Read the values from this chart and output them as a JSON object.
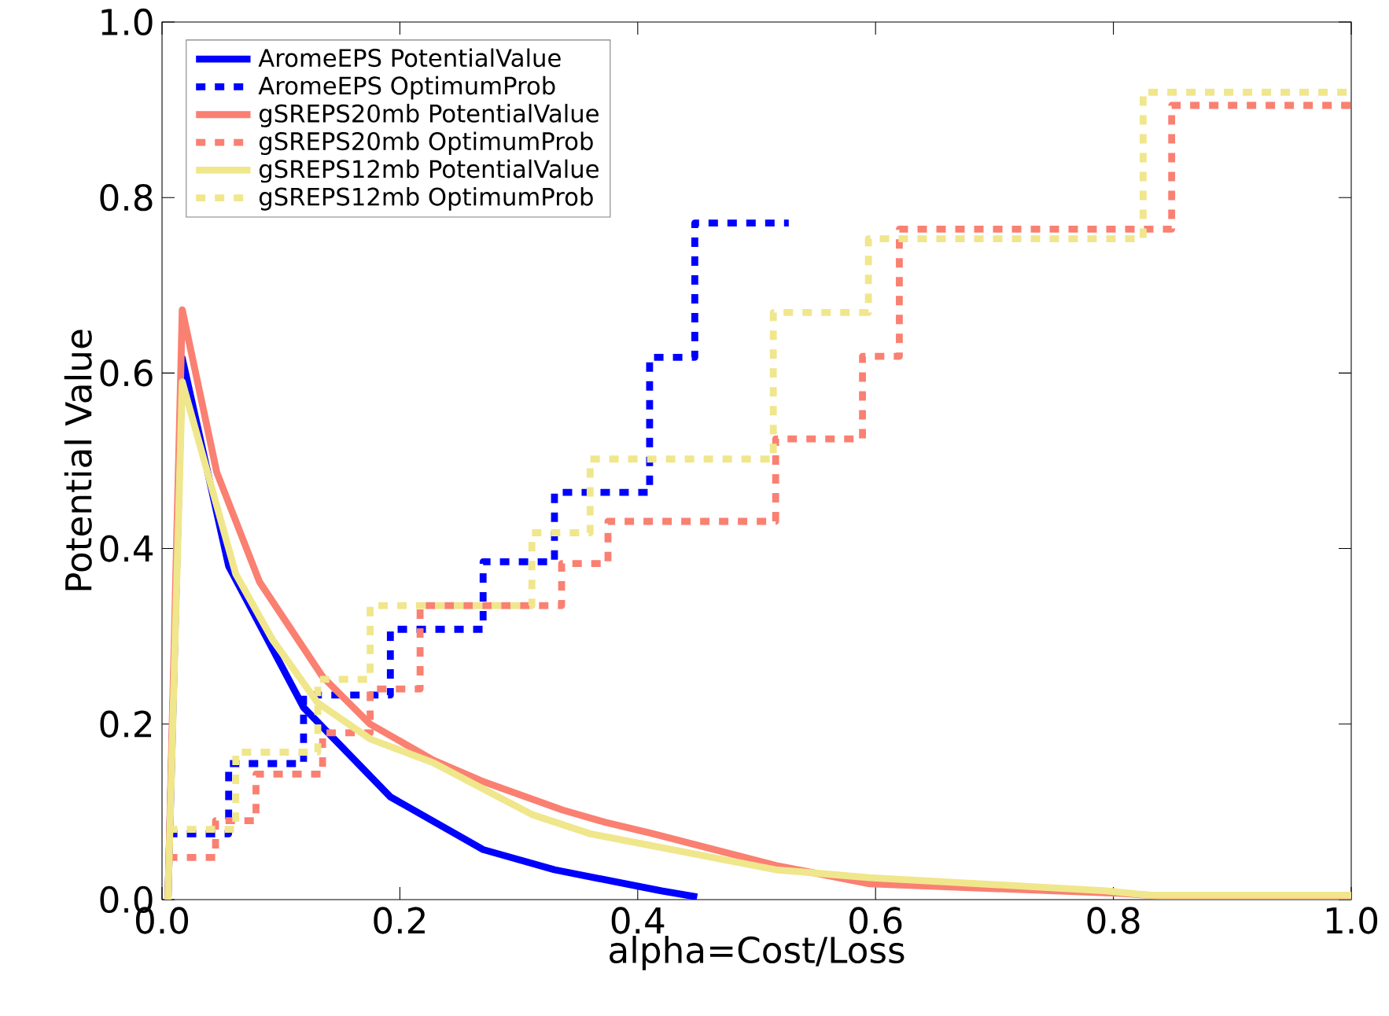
{
  "chart_data": {
    "type": "line",
    "xlabel": "alpha=Cost/Loss",
    "ylabel": "Potential Value",
    "xlim": [
      0,
      1
    ],
    "ylim": [
      0,
      1
    ],
    "xticks": [
      {
        "value": 0,
        "label": "0.0"
      },
      {
        "value": 0.2,
        "label": "0.2"
      },
      {
        "value": 0.4,
        "label": "0.4"
      },
      {
        "value": 0.6,
        "label": "0.6"
      },
      {
        "value": 0.8,
        "label": "0.8"
      },
      {
        "value": 1,
        "label": "1.0"
      }
    ],
    "yticks": [
      {
        "value": 0,
        "label": "0.0"
      },
      {
        "value": 0.2,
        "label": "0.2"
      },
      {
        "value": 0.4,
        "label": "0.4"
      },
      {
        "value": 0.6,
        "label": "0.6"
      },
      {
        "value": 0.8,
        "label": "0.8"
      },
      {
        "value": 1,
        "label": "1.0"
      }
    ],
    "grid": false,
    "legend": "top left",
    "marker": "none",
    "series": [
      {
        "name": "AromeEPS PotentialValue",
        "color": "#0000ff",
        "line_style": "solid",
        "x": [
          0.005,
          0.017,
          0.056,
          0.119,
          0.192,
          0.27,
          0.33,
          0.42,
          0.45
        ],
        "values": [
          0,
          0.617,
          0.38,
          0.219,
          0.117,
          0.057,
          0.034,
          0.01,
          0.003
        ]
      },
      {
        "name": "AromeEPS OptimumProb",
        "color": "#0000ff",
        "type": "step",
        "line_style": "dashed",
        "x": [
          0.005,
          0.056,
          0.119,
          0.192,
          0.27,
          0.33,
          0.41,
          0.448,
          0.527
        ],
        "values": [
          0.075,
          0.155,
          0.233,
          0.308,
          0.385,
          0.464,
          0.618,
          0.771,
          0.771
        ]
      },
      {
        "name": "gSREPS20mb PotentialValue",
        "color": "#fa8072",
        "line_style": "solid",
        "x": [
          0.005,
          0.017,
          0.046,
          0.082,
          0.135,
          0.175,
          0.228,
          0.271,
          0.337,
          0.373,
          0.413,
          0.516,
          0.595,
          0.807,
          0.84,
          1.0
        ],
        "values": [
          0,
          0.672,
          0.487,
          0.362,
          0.254,
          0.2,
          0.159,
          0.134,
          0.102,
          0.088,
          0.075,
          0.039,
          0.018,
          0.007,
          0.004,
          0.004
        ]
      },
      {
        "name": "gSREPS20mb OptimumProb",
        "color": "#fa8072",
        "type": "step",
        "line_style": "dashed",
        "x": [
          0.005,
          0.045,
          0.079,
          0.135,
          0.175,
          0.217,
          0.336,
          0.375,
          0.516,
          0.589,
          0.62,
          0.849,
          1.0
        ],
        "values": [
          0.048,
          0.09,
          0.143,
          0.19,
          0.24,
          0.335,
          0.383,
          0.431,
          0.525,
          0.619,
          0.764,
          0.905,
          0.905
        ]
      },
      {
        "name": "gSREPS12mb PotentialValue",
        "color": "#f0e68c",
        "line_style": "solid",
        "x": [
          0.005,
          0.017,
          0.062,
          0.093,
          0.131,
          0.175,
          0.228,
          0.311,
          0.36,
          0.516,
          0.595,
          0.794,
          0.83,
          1.0
        ],
        "values": [
          0,
          0.59,
          0.371,
          0.296,
          0.224,
          0.183,
          0.156,
          0.097,
          0.075,
          0.034,
          0.025,
          0.01,
          0.005,
          0.005
        ]
      },
      {
        "name": "gSREPS12mb OptimumProb",
        "color": "#f0e68c",
        "type": "step",
        "line_style": "dashed",
        "x": [
          0.005,
          0.062,
          0.131,
          0.175,
          0.311,
          0.36,
          0.514,
          0.594,
          0.825,
          1.0
        ],
        "values": [
          0.08,
          0.168,
          0.251,
          0.335,
          0.418,
          0.502,
          0.669,
          0.753,
          0.92,
          0.92
        ]
      }
    ]
  }
}
